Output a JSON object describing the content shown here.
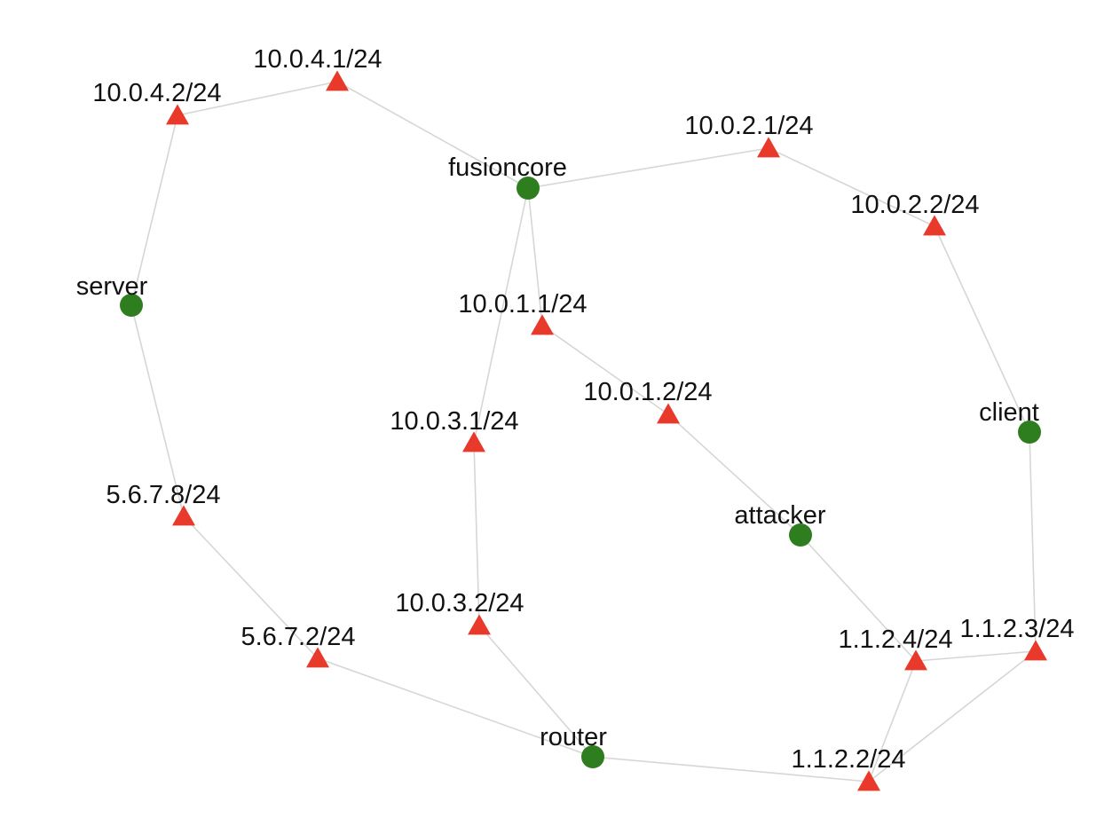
{
  "colors": {
    "host": "#2e7d1f",
    "interface": "#e8392b",
    "edge": "#d6d6d6"
  },
  "nodes": [
    {
      "id": "fusioncore",
      "label": "fusioncore",
      "kind": "host"
    },
    {
      "id": "server",
      "label": "server",
      "kind": "host"
    },
    {
      "id": "client",
      "label": "client",
      "kind": "host"
    },
    {
      "id": "attacker",
      "label": "attacker",
      "kind": "host"
    },
    {
      "id": "router",
      "label": "router",
      "kind": "host"
    },
    {
      "id": "ip_10_0_4_1",
      "label": "10.0.4.1/24",
      "kind": "interface"
    },
    {
      "id": "ip_10_0_4_2",
      "label": "10.0.4.2/24",
      "kind": "interface"
    },
    {
      "id": "ip_10_0_2_1",
      "label": "10.0.2.1/24",
      "kind": "interface"
    },
    {
      "id": "ip_10_0_2_2",
      "label": "10.0.2.2/24",
      "kind": "interface"
    },
    {
      "id": "ip_10_0_1_1",
      "label": "10.0.1.1/24",
      "kind": "interface"
    },
    {
      "id": "ip_10_0_1_2",
      "label": "10.0.1.2/24",
      "kind": "interface"
    },
    {
      "id": "ip_10_0_3_1",
      "label": "10.0.3.1/24",
      "kind": "interface"
    },
    {
      "id": "ip_10_0_3_2",
      "label": "10.0.3.2/24",
      "kind": "interface"
    },
    {
      "id": "ip_5_6_7_8",
      "label": "5.6.7.8/24",
      "kind": "interface"
    },
    {
      "id": "ip_5_6_7_2",
      "label": "5.6.7.2/24",
      "kind": "interface"
    },
    {
      "id": "ip_1_1_2_4",
      "label": "1.1.2.4/24",
      "kind": "interface"
    },
    {
      "id": "ip_1_1_2_3",
      "label": "1.1.2.3/24",
      "kind": "interface"
    },
    {
      "id": "ip_1_1_2_2",
      "label": "1.1.2.2/24",
      "kind": "interface"
    }
  ],
  "edges": [
    [
      "ip_10_0_4_1",
      "ip_10_0_4_2"
    ],
    [
      "ip_10_0_4_1",
      "fusioncore"
    ],
    [
      "ip_10_0_4_2",
      "server"
    ],
    [
      "fusioncore",
      "ip_10_0_2_1"
    ],
    [
      "ip_10_0_2_1",
      "ip_10_0_2_2"
    ],
    [
      "ip_10_0_2_2",
      "client"
    ],
    [
      "fusioncore",
      "ip_10_0_1_1"
    ],
    [
      "fusioncore",
      "ip_10_0_3_1"
    ],
    [
      "ip_10_0_1_1",
      "ip_10_0_1_2"
    ],
    [
      "ip_10_0_1_2",
      "attacker"
    ],
    [
      "ip_10_0_3_1",
      "ip_10_0_3_2"
    ],
    [
      "ip_10_0_3_2",
      "router"
    ],
    [
      "server",
      "ip_5_6_7_8"
    ],
    [
      "ip_5_6_7_8",
      "ip_5_6_7_2"
    ],
    [
      "ip_5_6_7_2",
      "router"
    ],
    [
      "router",
      "ip_1_1_2_2"
    ],
    [
      "attacker",
      "ip_1_1_2_4"
    ],
    [
      "ip_1_1_2_4",
      "ip_1_1_2_3"
    ],
    [
      "ip_1_1_2_4",
      "ip_1_1_2_2"
    ],
    [
      "ip_1_1_2_2",
      "ip_1_1_2_3"
    ],
    [
      "client",
      "ip_1_1_2_3"
    ]
  ]
}
